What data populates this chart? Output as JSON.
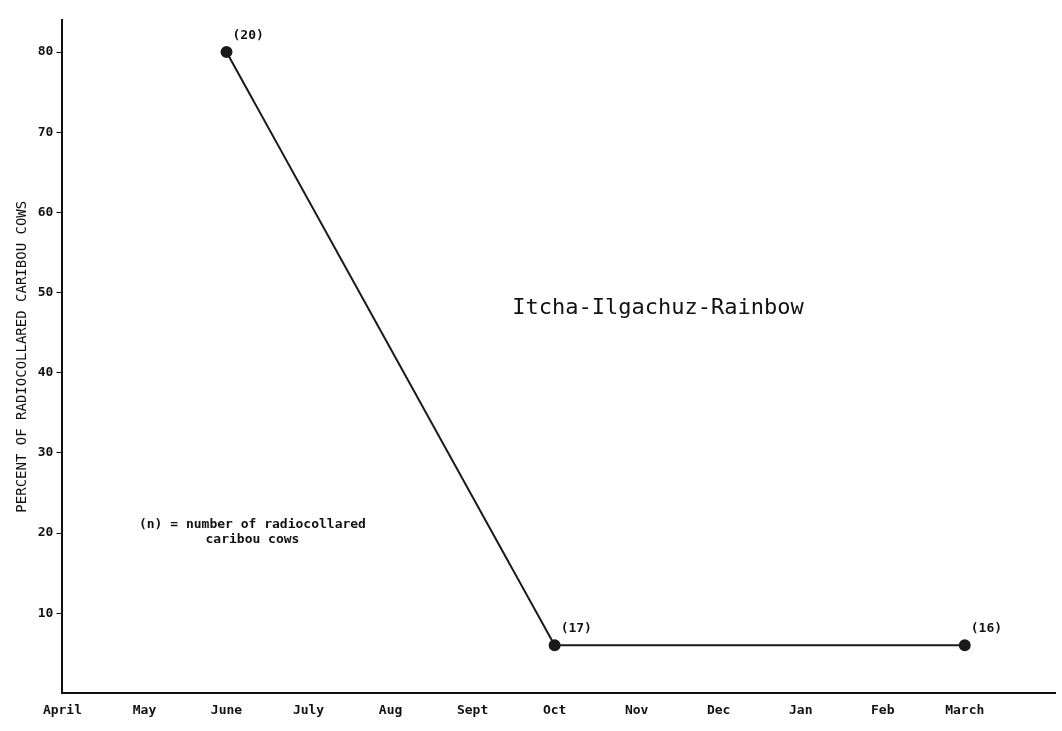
{
  "chart_data": {
    "type": "line",
    "title": "Itcha-Ilgachuz-Rainbow",
    "ylabel": "PERCENT OF RADIOCOLLARED CARIBOU COWS",
    "categories": [
      "April",
      "May",
      "June",
      "July",
      "Aug",
      "Sept",
      "Oct",
      "Nov",
      "Dec",
      "Jan",
      "Feb",
      "March"
    ],
    "series": [
      {
        "color": "#1a1a1a",
        "values": [
          null,
          null,
          80,
          null,
          null,
          null,
          6,
          null,
          null,
          null,
          null,
          6
        ]
      }
    ],
    "ylim": [
      0,
      84
    ],
    "yticks": [
      10,
      20,
      30,
      40,
      50,
      60,
      70,
      80
    ],
    "grid": false,
    "legend": false,
    "marker": "circle",
    "line_style": "solid",
    "annotations": [
      {
        "text": "(20)",
        "x": "June",
        "y": 80
      },
      {
        "text": "(17)",
        "x": "Oct",
        "y": 6
      },
      {
        "text": "(16)",
        "x": "March",
        "y": 6
      },
      "(n) = number of radiocollared caribou cows"
    ]
  }
}
